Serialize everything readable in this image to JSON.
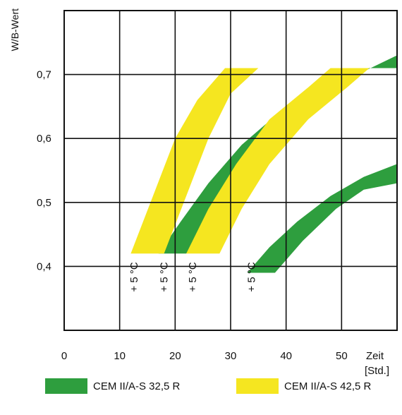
{
  "chart_data": {
    "type": "area",
    "ylabel": "W/B-Wert",
    "xlabel": "Zeit",
    "xunit": "[Std.]",
    "xlim": [
      0,
      60
    ],
    "ylim": [
      0.3,
      0.8
    ],
    "xticks": [
      0,
      10,
      20,
      30,
      40,
      50
    ],
    "yticks": [
      {
        "value": 0.4,
        "label": "0,4"
      },
      {
        "value": 0.5,
        "label": "0,5"
      },
      {
        "value": 0.6,
        "label": "0,6"
      },
      {
        "value": 0.7,
        "label": "0,7"
      }
    ],
    "grid": true,
    "legend_position": "bottom",
    "series": [
      {
        "name": "CEM II/A-S 32,5 R",
        "color": "#2e9e3e",
        "bands": [
          {
            "lower": [
              [
                22,
                0.42
              ],
              [
                26,
                0.47
              ],
              [
                31,
                0.54
              ],
              [
                38,
                0.61
              ],
              [
                47,
                0.67
              ],
              [
                54,
                0.705
              ],
              [
                60,
                0.73
              ]
            ],
            "upper": [
              [
                17,
                0.42
              ],
              [
                21,
                0.47
              ],
              [
                26,
                0.53
              ],
              [
                32,
                0.59
              ],
              [
                40,
                0.65
              ],
              [
                47,
                0.69
              ],
              [
                50,
                0.71
              ],
              [
                60,
                0.71
              ]
            ]
          },
          {
            "lower": [
              [
                38,
                0.39
              ],
              [
                43,
                0.44
              ],
              [
                49,
                0.49
              ],
              [
                54,
                0.52
              ],
              [
                60,
                0.53
              ]
            ],
            "upper": [
              [
                33,
                0.39
              ],
              [
                37,
                0.43
              ],
              [
                42,
                0.47
              ],
              [
                48,
                0.51
              ],
              [
                54,
                0.54
              ],
              [
                60,
                0.56
              ]
            ]
          }
        ]
      },
      {
        "name": "CEM II/A-S 42,5 R",
        "color": "#f5e620",
        "bands": [
          {
            "lower": [
              [
                18,
                0.42
              ],
              [
                22,
                0.51
              ],
              [
                26,
                0.6
              ],
              [
                30,
                0.67
              ],
              [
                35,
                0.71
              ]
            ],
            "upper": [
              [
                12,
                0.42
              ],
              [
                16,
                0.51
              ],
              [
                20,
                0.6
              ],
              [
                24,
                0.66
              ],
              [
                29,
                0.71
              ]
            ]
          },
          {
            "lower": [
              [
                28,
                0.42
              ],
              [
                32,
                0.49
              ],
              [
                37,
                0.56
              ],
              [
                44,
                0.63
              ],
              [
                51,
                0.68
              ],
              [
                55,
                0.71
              ]
            ],
            "upper": [
              [
                22,
                0.42
              ],
              [
                26,
                0.49
              ],
              [
                31,
                0.56
              ],
              [
                37,
                0.63
              ],
              [
                44,
                0.68
              ],
              [
                48,
                0.71
              ]
            ]
          }
        ]
      }
    ],
    "annotations": [
      {
        "text": "+ 5 °C",
        "x": 13.2,
        "y": 0.36
      },
      {
        "text": "+ 5 °C",
        "x": 18.6,
        "y": 0.36
      },
      {
        "text": "+ 5 °C",
        "x": 23.8,
        "y": 0.36
      },
      {
        "text": "+ 5 °C",
        "x": 34.4,
        "y": 0.36
      }
    ]
  }
}
